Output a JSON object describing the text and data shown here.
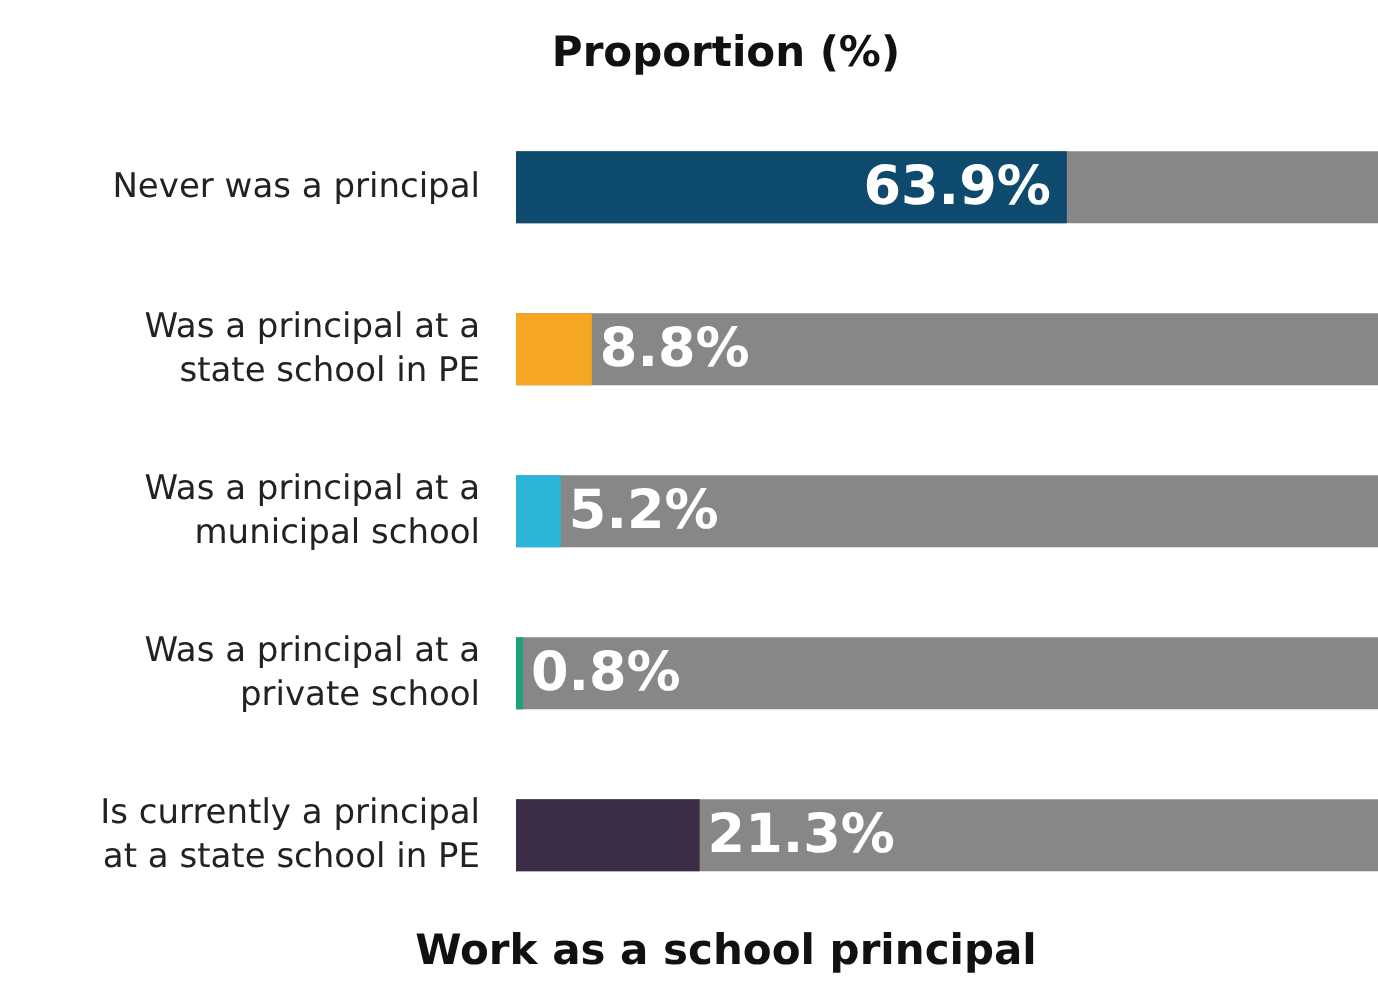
{
  "chart_data": {
    "type": "bar",
    "orientation": "horizontal",
    "title": "Proportion (%)",
    "xlabel": "Work as a school principal",
    "categories": [
      "Never was a principal",
      "Was a principal at a state school in PE",
      "Was a principal at a municipal school",
      "Was a principal at a private school",
      "Is currently a principal at a state school in PE"
    ],
    "values": [
      63.9,
      8.8,
      5.2,
      0.8,
      21.3
    ],
    "colors": [
      "#0d4a6e",
      "#f5a623",
      "#2bb5d8",
      "#1aa37a",
      "#3b2d45"
    ],
    "value_labels": [
      "63.9%",
      "8.8%",
      "5.2%",
      "0.8%",
      "21.3%"
    ],
    "xlim": [
      0,
      100
    ],
    "tick_labels": false
  }
}
